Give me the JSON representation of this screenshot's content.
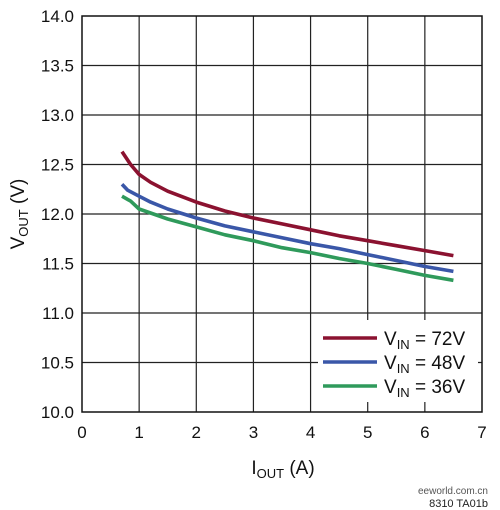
{
  "chart_data": {
    "type": "line",
    "xlabel": {
      "main": "I",
      "sub": "OUT",
      "rest": " (A)"
    },
    "ylabel": {
      "main": "V",
      "sub": "OUT",
      "rest": " (V)"
    },
    "xlim": [
      0,
      7
    ],
    "ylim": [
      10.0,
      14.0
    ],
    "xticks": [
      "0",
      "1",
      "2",
      "3",
      "4",
      "5",
      "6",
      "7"
    ],
    "yticks": [
      "10.0",
      "10.5",
      "11.0",
      "11.5",
      "12.0",
      "12.5",
      "13.0",
      "13.5",
      "14.0"
    ],
    "grid": true,
    "legend_position": "bottom-right",
    "series": [
      {
        "name": "V_IN = 72V",
        "label_main": "V",
        "label_sub": "IN",
        "label_rest": " = 72V",
        "color": "#8b1230",
        "x": [
          0.7,
          0.85,
          1.0,
          1.2,
          1.5,
          2.0,
          2.5,
          3.0,
          3.5,
          4.0,
          4.5,
          5.0,
          5.5,
          6.0,
          6.5
        ],
        "y": [
          12.63,
          12.5,
          12.4,
          12.32,
          12.23,
          12.12,
          12.03,
          11.96,
          11.9,
          11.84,
          11.78,
          11.73,
          11.68,
          11.63,
          11.58
        ]
      },
      {
        "name": "V_IN = 48V",
        "label_main": "V",
        "label_sub": "IN",
        "label_rest": " = 48V",
        "color": "#3a57a8",
        "x": [
          0.7,
          0.8,
          1.0,
          1.2,
          1.5,
          2.0,
          2.5,
          3.0,
          3.5,
          4.0,
          4.5,
          5.0,
          5.5,
          6.0,
          6.5
        ],
        "y": [
          12.3,
          12.24,
          12.18,
          12.12,
          12.05,
          11.96,
          11.88,
          11.82,
          11.76,
          11.7,
          11.65,
          11.59,
          11.53,
          11.47,
          11.42
        ]
      },
      {
        "name": "V_IN = 36V",
        "label_main": "V",
        "label_sub": "IN",
        "label_rest": " = 36V",
        "color": "#2f9a5b",
        "x": [
          0.7,
          0.85,
          1.0,
          1.2,
          1.5,
          2.0,
          2.5,
          3.0,
          3.5,
          4.0,
          4.5,
          5.0,
          5.5,
          6.0,
          6.5
        ],
        "y": [
          12.18,
          12.13,
          12.05,
          12.01,
          11.95,
          11.87,
          11.79,
          11.73,
          11.66,
          11.61,
          11.55,
          11.5,
          11.44,
          11.38,
          11.33
        ]
      }
    ]
  },
  "figure_ref": "8310 TA01b",
  "watermark": "eeworld.com.cn"
}
